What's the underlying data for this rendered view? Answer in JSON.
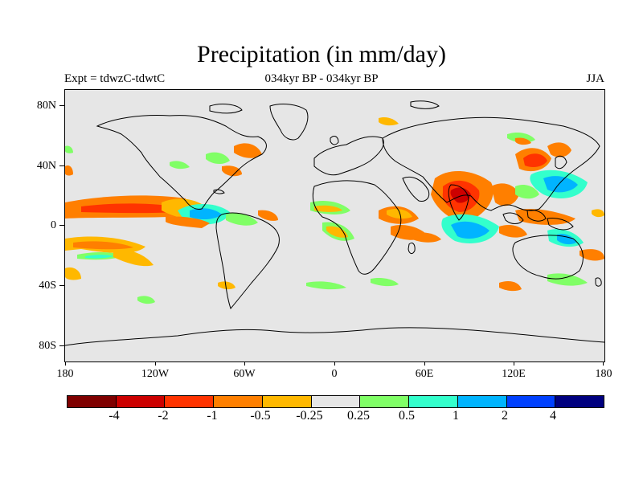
{
  "title": "Precipitation (in mm/day)",
  "experiment_label": "Expt = tdwzC-tdwtC",
  "period_label": "034kyr BP - 034kyr BP",
  "season_label": "JJA",
  "map": {
    "background_color": "#e6e6e6",
    "coastline_color": "#000000",
    "lat_labels": [
      "80N",
      "40N",
      "0",
      "40S",
      "80S"
    ],
    "lon_labels": [
      "180",
      "120W",
      "60W",
      "0",
      "60E",
      "120E",
      "180"
    ]
  },
  "colorbar": {
    "colors": [
      "#7f0000",
      "#cc0000",
      "#ff3300",
      "#ff7f00",
      "#ffb800",
      "#e6e6e6",
      "#80ff66",
      "#33ffcc",
      "#00b4ff",
      "#0040ff",
      "#00007f"
    ],
    "labels": [
      "-4",
      "-2",
      "-1",
      "-0.5",
      "-0.25",
      "0.25",
      "0.5",
      "1",
      "2",
      "4"
    ]
  }
}
